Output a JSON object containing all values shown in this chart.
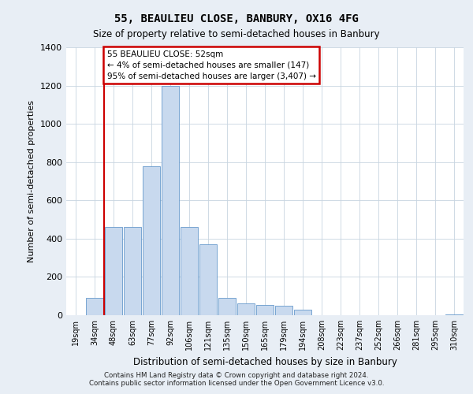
{
  "title1": "55, BEAULIEU CLOSE, BANBURY, OX16 4FG",
  "title2": "Size of property relative to semi-detached houses in Banbury",
  "xlabel": "Distribution of semi-detached houses by size in Banbury",
  "ylabel": "Number of semi-detached properties",
  "categories": [
    "19sqm",
    "34sqm",
    "48sqm",
    "63sqm",
    "77sqm",
    "92sqm",
    "106sqm",
    "121sqm",
    "135sqm",
    "150sqm",
    "165sqm",
    "179sqm",
    "194sqm",
    "208sqm",
    "223sqm",
    "237sqm",
    "252sqm",
    "266sqm",
    "281sqm",
    "295sqm",
    "310sqm"
  ],
  "values": [
    0,
    90,
    460,
    460,
    780,
    1200,
    460,
    370,
    90,
    60,
    55,
    50,
    30,
    0,
    0,
    0,
    0,
    0,
    0,
    0,
    5
  ],
  "bar_color": "#c8d9ee",
  "bar_edge_color": "#6699cc",
  "annotation_text": "55 BEAULIEU CLOSE: 52sqm\n← 4% of semi-detached houses are smaller (147)\n95% of semi-detached houses are larger (3,407) →",
  "annotation_box_color": "#ffffff",
  "annotation_box_edge_color": "#cc0000",
  "property_line_x": 1.5,
  "ylim": [
    0,
    1400
  ],
  "yticks": [
    0,
    200,
    400,
    600,
    800,
    1000,
    1200,
    1400
  ],
  "footer1": "Contains HM Land Registry data © Crown copyright and database right 2024.",
  "footer2": "Contains public sector information licensed under the Open Government Licence v3.0.",
  "background_color": "#e8eef5",
  "plot_bg_color": "#ffffff",
  "grid_color": "#c8d4e0"
}
